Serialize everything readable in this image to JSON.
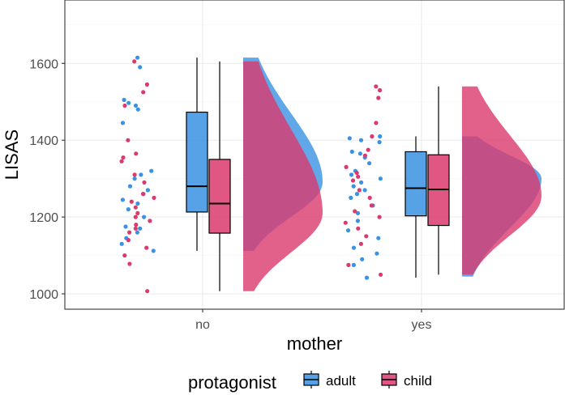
{
  "colors": {
    "adult": "#3a92e3",
    "child": "#db3a6e"
  },
  "chart_data": {
    "type": "raincloud",
    "xlabel": "mother",
    "ylabel": "LISAS",
    "categories": [
      "no",
      "yes"
    ],
    "ylim": [
      960,
      1765
    ],
    "yticks": [
      1000,
      1200,
      1400,
      1600
    ],
    "grid": true,
    "legend": {
      "position": "bottom",
      "title": "protagonist",
      "entries": [
        {
          "key": "adult",
          "label": "adult"
        },
        {
          "key": "child",
          "label": "child"
        }
      ]
    },
    "series": [
      {
        "name": "adult",
        "boxes": [
          {
            "category": "no",
            "min": 1112,
            "q1": 1213,
            "median": 1280,
            "q3": 1473,
            "max": 1615
          },
          {
            "category": "yes",
            "min": 1042,
            "q1": 1203,
            "median": 1275,
            "q3": 1370,
            "max": 1410
          }
        ],
        "density": [
          {
            "category": "no",
            "range": [
              1112,
              1615
            ],
            "mode": 1290,
            "width": 1.0
          },
          {
            "category": "yes",
            "range": [
              1045,
              1410
            ],
            "mode": 1300,
            "width": 1.0
          }
        ],
        "points": [
          {
            "category": "no",
            "values": [
              1615,
              1590,
              1505,
              1497,
              1490,
              1480,
              1445,
              1320,
              1310,
              1300,
              1280,
              1270,
              1260,
              1245,
              1235,
              1220,
              1200,
              1175,
              1170,
              1160,
              1145,
              1130,
              1112
            ]
          },
          {
            "category": "yes",
            "values": [
              1410,
              1405,
              1400,
              1395,
              1370,
              1365,
              1355,
              1340,
              1320,
              1310,
              1300,
              1290,
              1280,
              1270,
              1260,
              1250,
              1230,
              1210,
              1190,
              1165,
              1145,
              1120,
              1105,
              1090,
              1075,
              1042
            ]
          }
        ]
      },
      {
        "name": "child",
        "boxes": [
          {
            "category": "no",
            "min": 1007,
            "q1": 1158,
            "median": 1235,
            "q3": 1350,
            "max": 1605
          },
          {
            "category": "yes",
            "min": 1050,
            "q1": 1178,
            "median": 1272,
            "q3": 1362,
            "max": 1540
          }
        ],
        "density": [
          {
            "category": "no",
            "range": [
              1007,
              1605
            ],
            "mode": 1210,
            "width": 1.0
          },
          {
            "category": "yes",
            "range": [
              1050,
              1540
            ],
            "mode": 1255,
            "width": 1.0
          }
        ],
        "points": [
          {
            "category": "no",
            "values": [
              1605,
              1545,
              1525,
              1490,
              1400,
              1365,
              1355,
              1345,
              1310,
              1290,
              1260,
              1250,
              1240,
              1225,
              1210,
              1200,
              1190,
              1180,
              1170,
              1160,
              1140,
              1120,
              1100,
              1078,
              1007
            ]
          },
          {
            "category": "yes",
            "values": [
              1540,
              1530,
              1510,
              1445,
              1410,
              1375,
              1360,
              1330,
              1315,
              1305,
              1295,
              1270,
              1250,
              1230,
              1215,
              1200,
              1185,
              1170,
              1150,
              1130,
              1075,
              1050
            ]
          }
        ]
      }
    ]
  }
}
